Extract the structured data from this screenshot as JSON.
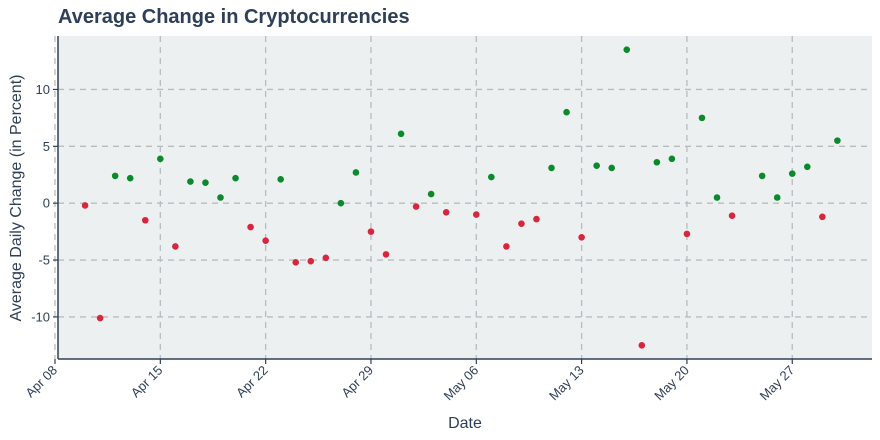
{
  "chart_data": {
    "type": "scatter",
    "title": "Average Change in Cryptocurrencies",
    "xlabel": "Date",
    "ylabel": "Average Daily Change (in Percent)",
    "x_tick_labels": [
      "Apr 08",
      "Apr 15",
      "Apr 22",
      "Apr 29",
      "May 06",
      "May 13",
      "May 20",
      "May 27"
    ],
    "x_tick_dates": [
      "2024-04-08",
      "2024-04-15",
      "2024-04-22",
      "2024-04-29",
      "2024-05-06",
      "2024-05-13",
      "2024-05-20",
      "2024-05-27"
    ],
    "y_ticks": [
      -10,
      -5,
      0,
      5,
      10
    ],
    "xlim": [
      "2024-04-08",
      "2024-06-01"
    ],
    "ylim": [
      -13.7,
      14.7
    ],
    "grid": true,
    "colors": {
      "positive": "#0a8a2a",
      "negative": "#d7263d",
      "plot_bg": "#ecf0f1",
      "axis": "#2e4057"
    },
    "points": [
      {
        "x": "2024-04-10",
        "y": -0.2
      },
      {
        "x": "2024-04-11",
        "y": -10.1
      },
      {
        "x": "2024-04-12",
        "y": 2.4
      },
      {
        "x": "2024-04-13",
        "y": 2.2
      },
      {
        "x": "2024-04-14",
        "y": -1.5
      },
      {
        "x": "2024-04-15",
        "y": 3.9
      },
      {
        "x": "2024-04-16",
        "y": -3.8
      },
      {
        "x": "2024-04-17",
        "y": 1.9
      },
      {
        "x": "2024-04-18",
        "y": 1.8
      },
      {
        "x": "2024-04-19",
        "y": 0.5
      },
      {
        "x": "2024-04-20",
        "y": 2.2
      },
      {
        "x": "2024-04-21",
        "y": -2.1
      },
      {
        "x": "2024-04-22",
        "y": -3.3
      },
      {
        "x": "2024-04-23",
        "y": 2.1
      },
      {
        "x": "2024-04-24",
        "y": -5.2
      },
      {
        "x": "2024-04-25",
        "y": -5.1
      },
      {
        "x": "2024-04-26",
        "y": -4.8
      },
      {
        "x": "2024-04-27",
        "y": 0.0
      },
      {
        "x": "2024-04-28",
        "y": 2.7
      },
      {
        "x": "2024-04-29",
        "y": -2.5
      },
      {
        "x": "2024-04-30",
        "y": -4.5
      },
      {
        "x": "2024-05-01",
        "y": 6.1
      },
      {
        "x": "2024-05-02",
        "y": -0.3
      },
      {
        "x": "2024-05-03",
        "y": 0.8
      },
      {
        "x": "2024-05-04",
        "y": -0.8
      },
      {
        "x": "2024-05-06",
        "y": -1.0
      },
      {
        "x": "2024-05-07",
        "y": 2.3
      },
      {
        "x": "2024-05-08",
        "y": -3.8
      },
      {
        "x": "2024-05-09",
        "y": -1.8
      },
      {
        "x": "2024-05-10",
        "y": -1.4
      },
      {
        "x": "2024-05-11",
        "y": 3.1
      },
      {
        "x": "2024-05-12",
        "y": 8.0
      },
      {
        "x": "2024-05-13",
        "y": -3.0
      },
      {
        "x": "2024-05-14",
        "y": 3.3
      },
      {
        "x": "2024-05-15",
        "y": 3.1
      },
      {
        "x": "2024-05-16",
        "y": 13.5
      },
      {
        "x": "2024-05-17",
        "y": -12.5
      },
      {
        "x": "2024-05-18",
        "y": 3.6
      },
      {
        "x": "2024-05-19",
        "y": 3.9
      },
      {
        "x": "2024-05-20",
        "y": -2.7
      },
      {
        "x": "2024-05-21",
        "y": 7.5
      },
      {
        "x": "2024-05-22",
        "y": 0.5
      },
      {
        "x": "2024-05-23",
        "y": -1.1
      },
      {
        "x": "2024-05-25",
        "y": 2.4
      },
      {
        "x": "2024-05-26",
        "y": 0.5
      },
      {
        "x": "2024-05-27",
        "y": 2.6
      },
      {
        "x": "2024-05-28",
        "y": 3.2
      },
      {
        "x": "2024-05-29",
        "y": -1.2
      },
      {
        "x": "2024-05-30",
        "y": 5.5
      }
    ]
  }
}
